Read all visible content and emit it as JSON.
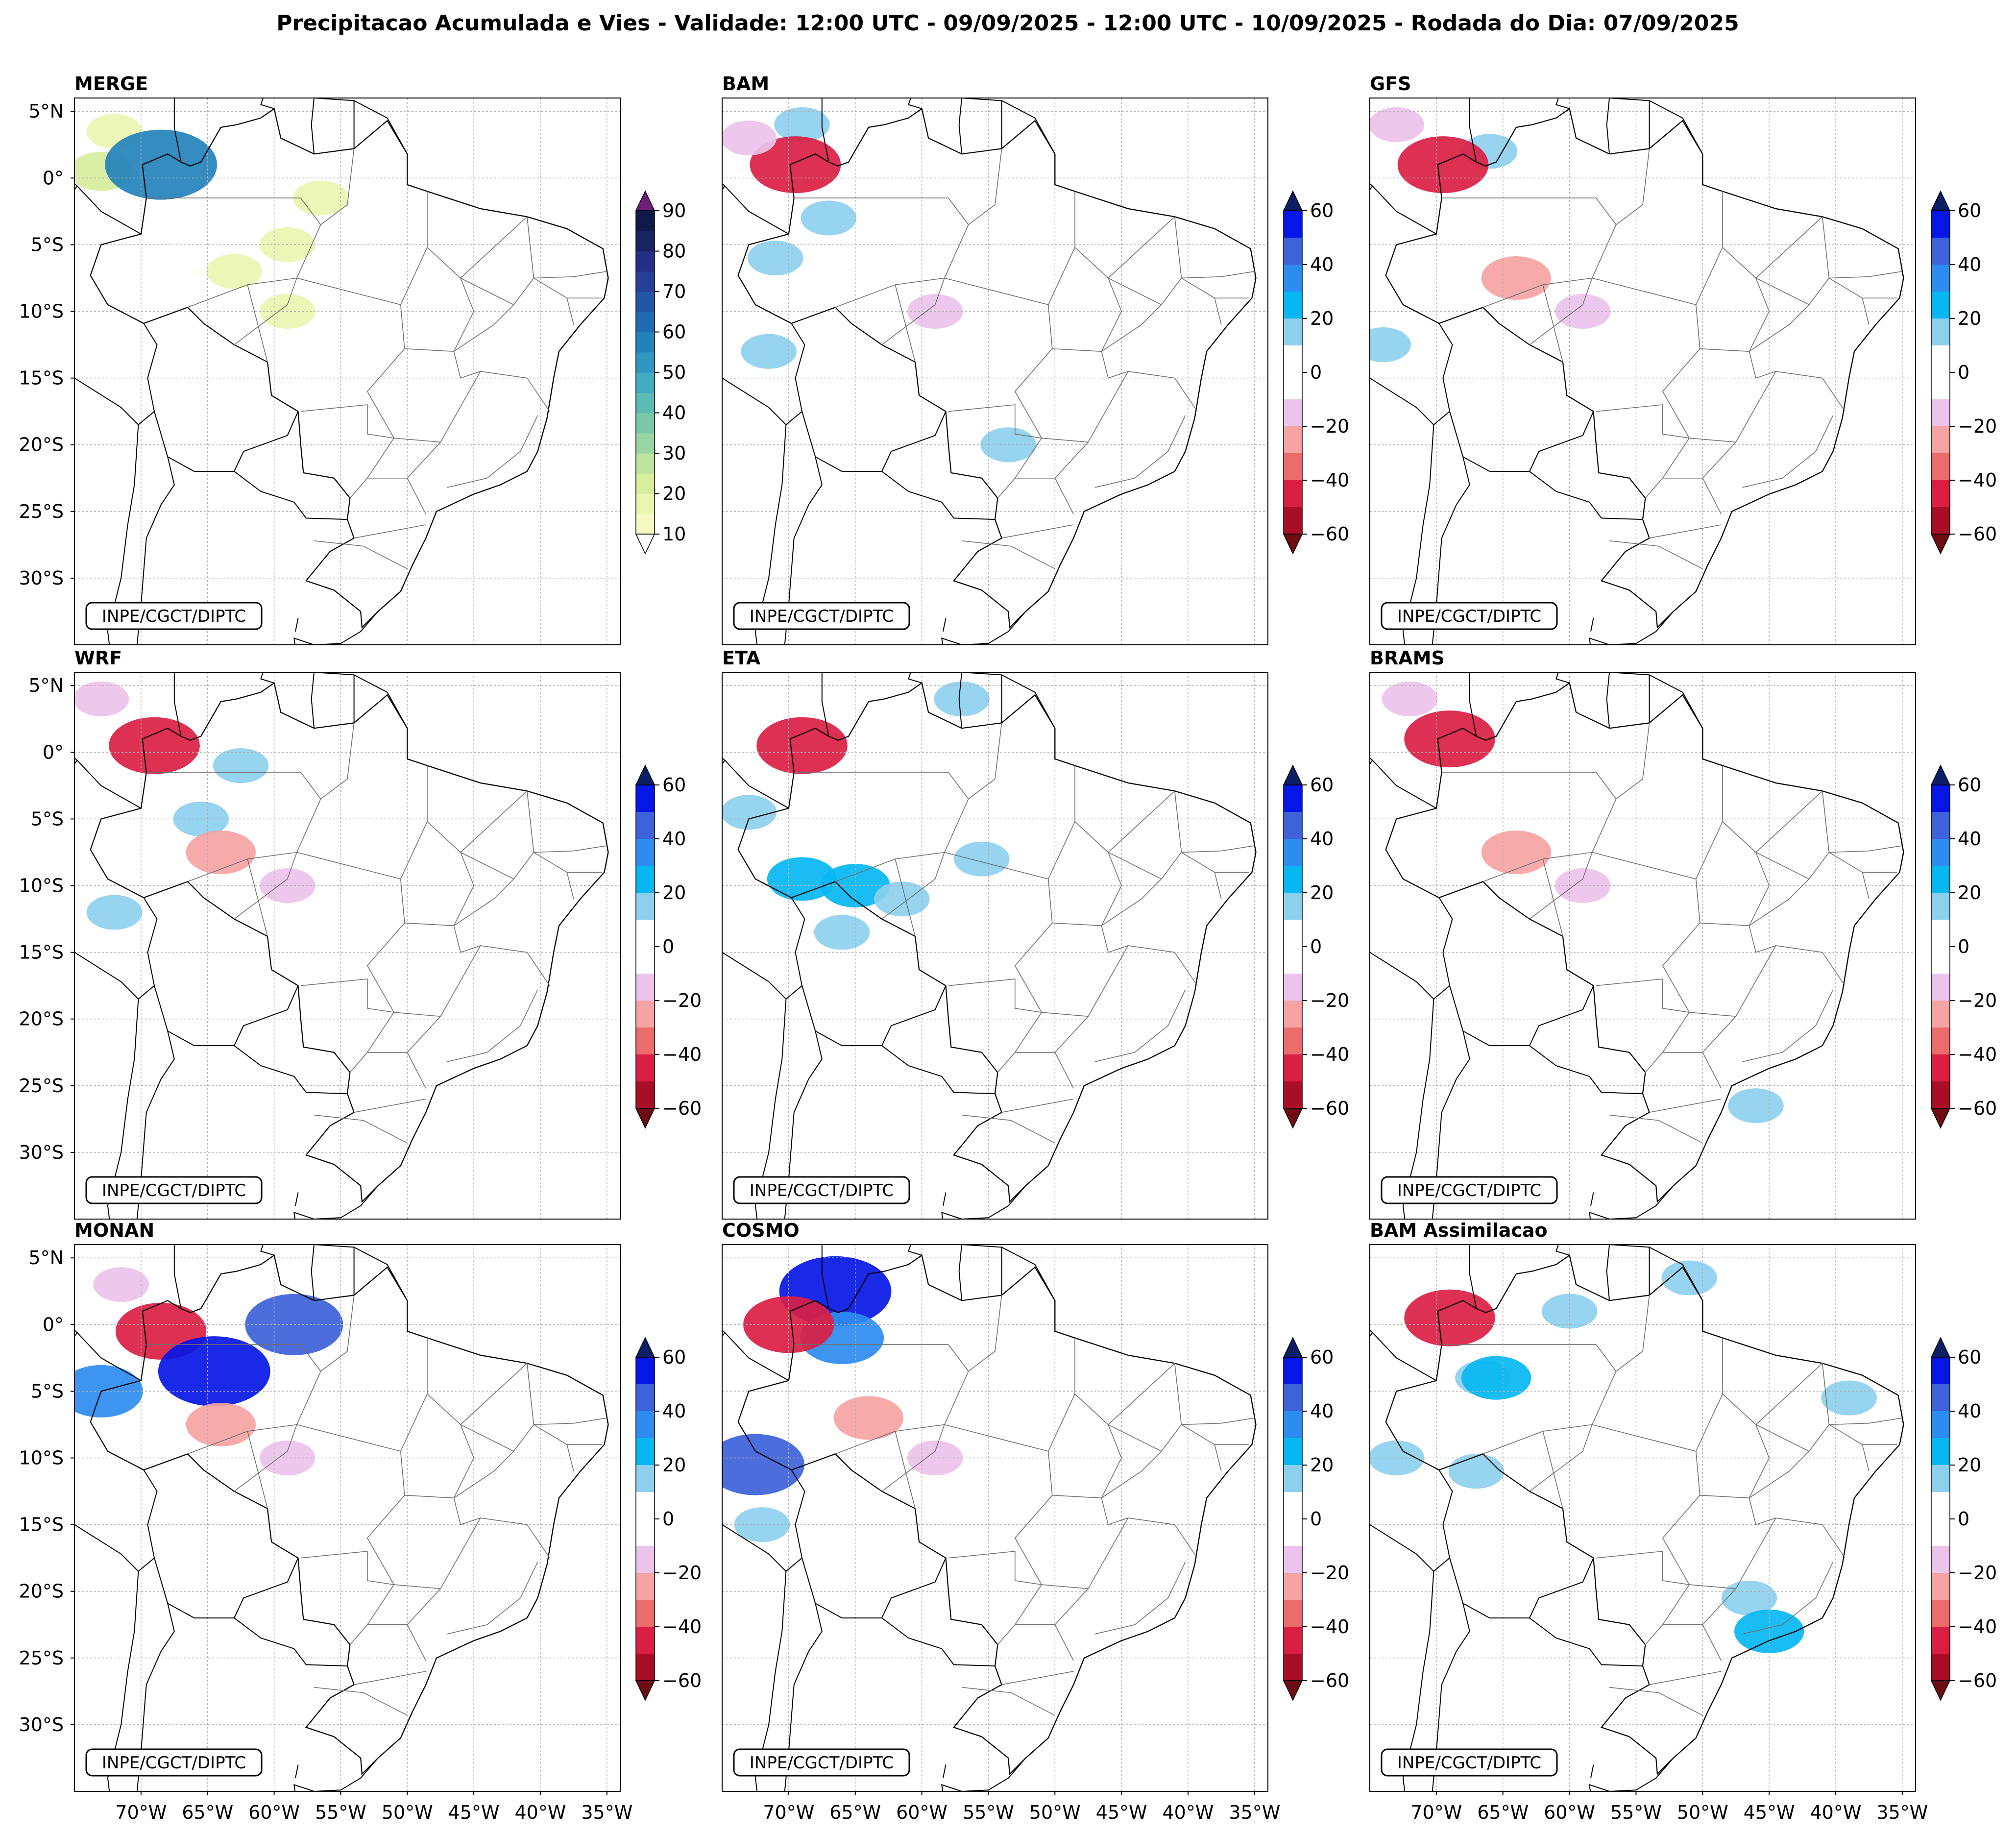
{
  "figure": {
    "title": "Precipitacao Acumulada e Vies - Validade: 12:00 UTC - 09/09/2025 - 12:00 UTC - 10/09/2025 - Rodada do Dia: 07/09/2025",
    "credit": "INPE/CGCT/DIPTC"
  },
  "axes": {
    "lat_labels": [
      "5°N",
      "0°",
      "5°S",
      "10°S",
      "15°S",
      "20°S",
      "25°S",
      "30°S"
    ],
    "lat_values": [
      5,
      0,
      -5,
      -10,
      -15,
      -20,
      -25,
      -30
    ],
    "lon_labels": [
      "70°W",
      "65°W",
      "60°W",
      "55°W",
      "50°W",
      "45°W",
      "40°W",
      "35°W"
    ],
    "lon_values": [
      -70,
      -65,
      -60,
      -55,
      -50,
      -45,
      -40,
      -35
    ],
    "lon_range": [
      -75,
      -34
    ],
    "lat_range": [
      -35,
      6
    ]
  },
  "colorbars": {
    "precip": {
      "ticks": [
        "10",
        "20",
        "30",
        "40",
        "50",
        "60",
        "70",
        "80",
        "90"
      ],
      "levels": [
        10,
        15,
        20,
        25,
        30,
        35,
        40,
        45,
        50,
        55,
        60,
        65,
        70,
        75,
        80,
        85,
        90
      ],
      "colors": [
        "#f6f9c4",
        "#eaf5b1",
        "#d7ee9d",
        "#bde49c",
        "#99d5a4",
        "#7ac8a7",
        "#5bbbb5",
        "#41adc2",
        "#2f98c1",
        "#2382bc",
        "#1f6cb0",
        "#2356a3",
        "#263f97",
        "#242e86",
        "#1a2362",
        "#0f1a48"
      ],
      "over_color": "#6e1e7a",
      "under_color": "#ffffff"
    },
    "bias": {
      "ticks": [
        "60",
        "40",
        "20",
        "0",
        "−20",
        "−40",
        "−60"
      ],
      "levels": [
        60,
        50,
        40,
        30,
        20,
        10,
        0,
        -10,
        -20,
        -30,
        -40,
        -50,
        -60
      ],
      "colors": [
        "#0616e6",
        "#3d62d9",
        "#2c8cf0",
        "#06b7f2",
        "#8dd0ee",
        "#ffffff",
        "#ffffff",
        "#ecc3ea",
        "#f5a3a3",
        "#ec6b6b",
        "#da1e43",
        "#a80e25"
      ],
      "over_color": "#0c1f66",
      "under_color": "#6b0d12"
    }
  },
  "panels": [
    {
      "id": "merge",
      "title": "MERGE",
      "colorbar": "precip",
      "fields": [
        {
          "color": "#eaf5b1",
          "value": 15,
          "lon": -72.0,
          "lat": 3.5
        },
        {
          "color": "#d7ee9d",
          "value": 20,
          "lon": -73.0,
          "lat": 0.5
        },
        {
          "color": "#2382bc",
          "value": 55,
          "lon": -68.5,
          "lat": 1.0
        },
        {
          "color": "#eaf5b1",
          "value": 15,
          "lon": -63.0,
          "lat": -7.0
        },
        {
          "color": "#eaf5b1",
          "value": 15,
          "lon": -59.0,
          "lat": -10.0
        },
        {
          "color": "#eaf5b1",
          "value": 15,
          "lon": -59.0,
          "lat": -5.0
        },
        {
          "color": "#eaf5b1",
          "value": 15,
          "lon": -56.5,
          "lat": -1.5
        }
      ]
    },
    {
      "id": "bam",
      "title": "BAM",
      "colorbar": "bias",
      "fields": [
        {
          "color": "#8dd0ee",
          "value": 15,
          "lon": -69.0,
          "lat": 4.0
        },
        {
          "color": "#da1e43",
          "value": -40,
          "lon": -69.5,
          "lat": 1.0
        },
        {
          "color": "#ecc3ea",
          "value": -15,
          "lon": -73.0,
          "lat": 3.0
        },
        {
          "color": "#8dd0ee",
          "value": 15,
          "lon": -71.0,
          "lat": -6.0
        },
        {
          "color": "#8dd0ee",
          "value": 15,
          "lon": -67.0,
          "lat": -3.0
        },
        {
          "color": "#8dd0ee",
          "value": 15,
          "lon": -71.5,
          "lat": -13.0
        },
        {
          "color": "#ecc3ea",
          "value": -15,
          "lon": -59.0,
          "lat": -10.0
        },
        {
          "color": "#8dd0ee",
          "value": 15,
          "lon": -53.5,
          "lat": -20.0
        }
      ]
    },
    {
      "id": "gfs",
      "title": "GFS",
      "colorbar": "bias",
      "fields": [
        {
          "color": "#8dd0ee",
          "value": 15,
          "lon": -66.0,
          "lat": 2.0
        },
        {
          "color": "#da1e43",
          "value": -40,
          "lon": -69.5,
          "lat": 1.0
        },
        {
          "color": "#ecc3ea",
          "value": -15,
          "lon": -73.0,
          "lat": 4.0
        },
        {
          "color": "#f5a3a3",
          "value": -25,
          "lon": -64.0,
          "lat": -7.5
        },
        {
          "color": "#ecc3ea",
          "value": -15,
          "lon": -59.0,
          "lat": -10.0
        },
        {
          "color": "#8dd0ee",
          "value": 15,
          "lon": -74.0,
          "lat": -12.5
        }
      ]
    },
    {
      "id": "wrf",
      "title": "WRF",
      "colorbar": "bias",
      "fields": [
        {
          "color": "#8dd0ee",
          "value": 15,
          "lon": -62.5,
          "lat": -1.0
        },
        {
          "color": "#8dd0ee",
          "value": 15,
          "lon": -65.5,
          "lat": -5.0
        },
        {
          "color": "#da1e43",
          "value": -40,
          "lon": -69.0,
          "lat": 0.5
        },
        {
          "color": "#ecc3ea",
          "value": -15,
          "lon": -73.0,
          "lat": 4.0
        },
        {
          "color": "#f5a3a3",
          "value": -25,
          "lon": -64.0,
          "lat": -7.5
        },
        {
          "color": "#ecc3ea",
          "value": -15,
          "lon": -59.0,
          "lat": -10.0
        },
        {
          "color": "#8dd0ee",
          "value": 15,
          "lon": -72.0,
          "lat": -12.0
        }
      ]
    },
    {
      "id": "eta",
      "title": "ETA",
      "colorbar": "bias",
      "fields": [
        {
          "color": "#8dd0ee",
          "value": 15,
          "lon": -73.0,
          "lat": -4.5
        },
        {
          "color": "#06b7f2",
          "value": 25,
          "lon": -65.0,
          "lat": -10.0
        },
        {
          "color": "#06b7f2",
          "value": 25,
          "lon": -69.0,
          "lat": -9.5
        },
        {
          "color": "#8dd0ee",
          "value": 15,
          "lon": -55.5,
          "lat": -8.0
        },
        {
          "color": "#8dd0ee",
          "value": 15,
          "lon": -66.0,
          "lat": -13.5
        },
        {
          "color": "#8dd0ee",
          "value": 15,
          "lon": -61.5,
          "lat": -11.0
        },
        {
          "color": "#da1e43",
          "value": -40,
          "lon": -69.0,
          "lat": 0.5
        },
        {
          "color": "#8dd0ee",
          "value": 15,
          "lon": -57.0,
          "lat": 4.0
        }
      ]
    },
    {
      "id": "brams",
      "title": "BRAMS",
      "colorbar": "bias",
      "fields": [
        {
          "color": "#da1e43",
          "value": -40,
          "lon": -69.0,
          "lat": 1.0
        },
        {
          "color": "#ecc3ea",
          "value": -15,
          "lon": -72.0,
          "lat": 4.0
        },
        {
          "color": "#f5a3a3",
          "value": -25,
          "lon": -64.0,
          "lat": -7.5
        },
        {
          "color": "#ecc3ea",
          "value": -15,
          "lon": -59.0,
          "lat": -10.0
        },
        {
          "color": "#8dd0ee",
          "value": 15,
          "lon": -46.0,
          "lat": -26.5
        }
      ]
    },
    {
      "id": "monan",
      "title": "MONAN",
      "colorbar": "bias",
      "fields": [
        {
          "color": "#da1e43",
          "value": -40,
          "lon": -68.5,
          "lat": -0.5
        },
        {
          "color": "#ecc3ea",
          "value": -15,
          "lon": -71.5,
          "lat": 3.0
        },
        {
          "color": "#0616e6",
          "value": 55,
          "lon": -64.5,
          "lat": -3.5
        },
        {
          "color": "#2c8cf0",
          "value": 35,
          "lon": -73.0,
          "lat": -5.0
        },
        {
          "color": "#f5a3a3",
          "value": -25,
          "lon": -64.0,
          "lat": -7.5
        },
        {
          "color": "#ecc3ea",
          "value": -15,
          "lon": -59.0,
          "lat": -10.0
        },
        {
          "color": "#3d62d9",
          "value": 45,
          "lon": -58.5,
          "lat": 0.0
        }
      ]
    },
    {
      "id": "cosmo",
      "title": "COSMO",
      "colorbar": "bias",
      "fields": [
        {
          "color": "#0616e6",
          "value": 55,
          "lon": -66.5,
          "lat": 2.5
        },
        {
          "color": "#2c8cf0",
          "value": 35,
          "lon": -66.0,
          "lat": -1.0
        },
        {
          "color": "#da1e43",
          "value": -40,
          "lon": -70.0,
          "lat": 0.0
        },
        {
          "color": "#f5a3a3",
          "value": -25,
          "lon": -64.0,
          "lat": -7.0
        },
        {
          "color": "#ecc3ea",
          "value": -15,
          "lon": -59.0,
          "lat": -10.0
        },
        {
          "color": "#3d62d9",
          "value": 45,
          "lon": -72.5,
          "lat": -10.5
        },
        {
          "color": "#8dd0ee",
          "value": 15,
          "lon": -72.0,
          "lat": -15.0
        }
      ]
    },
    {
      "id": "bam_assim",
      "title": "BAM Assimilacao",
      "colorbar": "bias",
      "fields": [
        {
          "color": "#8dd0ee",
          "value": 15,
          "lon": -66.5,
          "lat": -4.0
        },
        {
          "color": "#06b7f2",
          "value": 25,
          "lon": -65.5,
          "lat": -4.0
        },
        {
          "color": "#8dd0ee",
          "value": 15,
          "lon": -67.0,
          "lat": -11.0
        },
        {
          "color": "#8dd0ee",
          "value": 15,
          "lon": -73.0,
          "lat": -10.0
        },
        {
          "color": "#8dd0ee",
          "value": 15,
          "lon": -60.0,
          "lat": 1.0
        },
        {
          "color": "#8dd0ee",
          "value": 15,
          "lon": -46.5,
          "lat": -20.5
        },
        {
          "color": "#06b7f2",
          "value": 25,
          "lon": -45.0,
          "lat": -23.0
        },
        {
          "color": "#8dd0ee",
          "value": 15,
          "lon": -39.0,
          "lat": -5.5
        },
        {
          "color": "#8dd0ee",
          "value": 15,
          "lon": -51.0,
          "lat": 3.5
        },
        {
          "color": "#da1e43",
          "value": -40,
          "lon": -69.0,
          "lat": 0.5
        }
      ]
    }
  ]
}
